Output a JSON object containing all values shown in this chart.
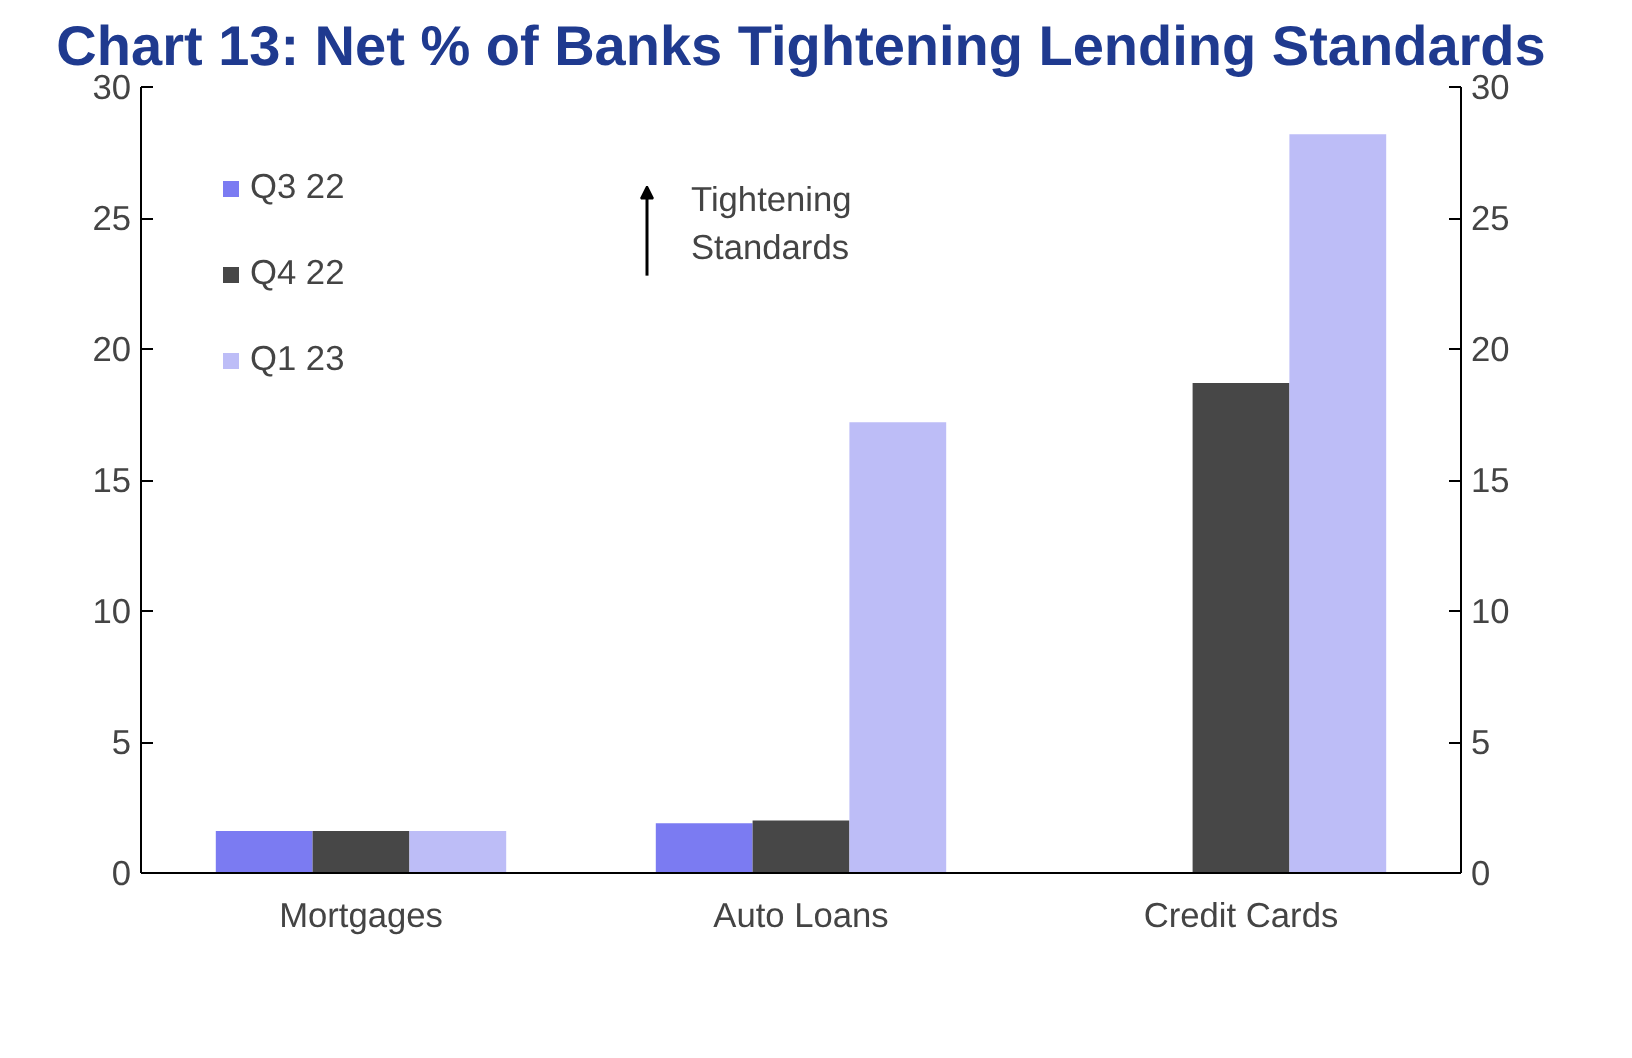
{
  "chart_data": {
    "type": "bar",
    "title": "Chart 13: Net % of Banks Tightening Lending Standards",
    "categories": [
      "Mortgages",
      "Auto Loans",
      "Credit Cards"
    ],
    "series": [
      {
        "name": "Q3 22",
        "color": "#7b7bf2",
        "values": [
          1.6,
          1.9,
          null
        ]
      },
      {
        "name": "Q4 22",
        "color": "#474747",
        "values": [
          1.6,
          2.0,
          18.7
        ]
      },
      {
        "name": "Q1 23",
        "color": "#bdbdf7",
        "values": [
          1.6,
          17.2,
          28.2
        ]
      }
    ],
    "ylim": [
      0,
      30
    ],
    "yticks": [
      0,
      5,
      10,
      15,
      20,
      25,
      30
    ],
    "y2lim": [
      0,
      30
    ],
    "y2ticks": [
      0,
      5,
      10,
      15,
      20,
      25,
      30
    ],
    "annotations": [
      "Tightening\nStandards"
    ],
    "legend": "top left",
    "grid": false
  }
}
